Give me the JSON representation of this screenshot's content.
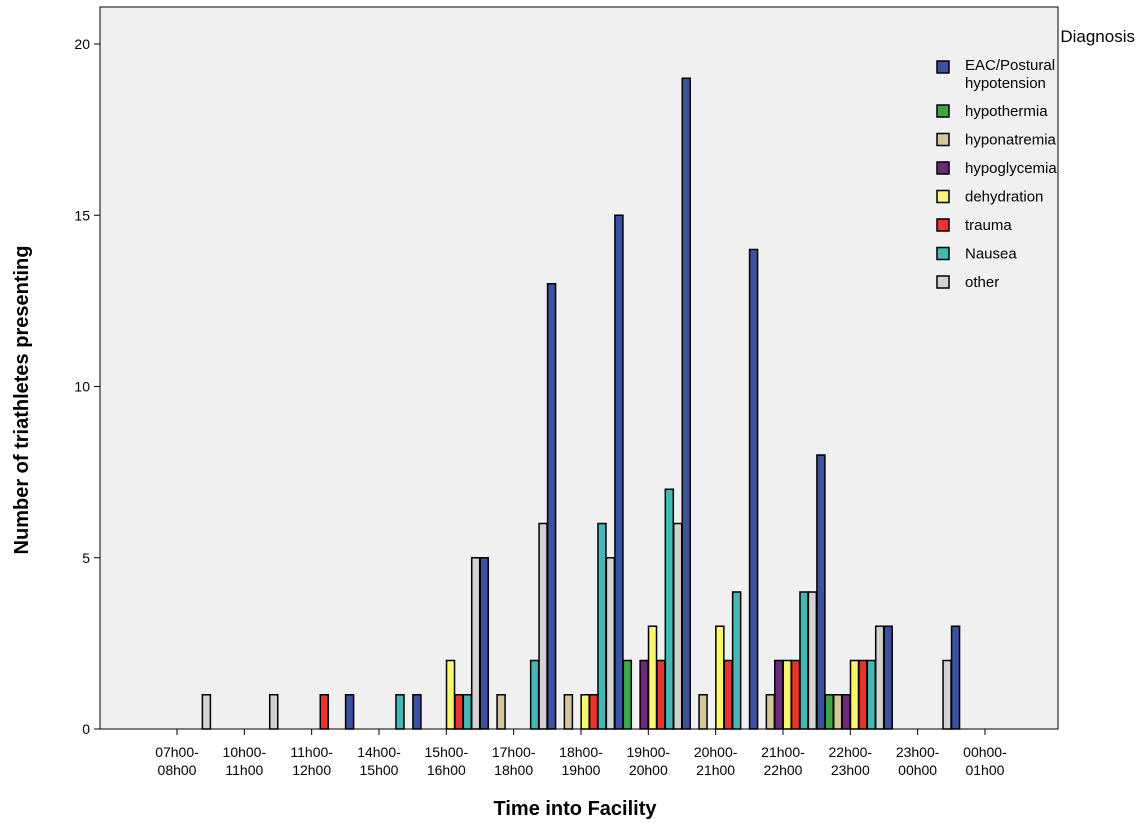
{
  "chart_data": {
    "type": "bar",
    "title": "",
    "xlabel": "Time into Facility",
    "ylabel": "Number of triathletes presenting",
    "ylim": [
      0,
      21
    ],
    "yticks": [
      0,
      5,
      10,
      15,
      20
    ],
    "grid": false,
    "legend_title": "Diagnosis",
    "legend_position": "top-right",
    "categories": [
      [
        "07h00-",
        "08h00"
      ],
      [
        "10h00-",
        "11h00"
      ],
      [
        "11h00-",
        "12h00"
      ],
      [
        "14h00-",
        "15h00"
      ],
      [
        "15h00-",
        "16h00"
      ],
      [
        "17h00-",
        "18h00"
      ],
      [
        "18h00-",
        "19h00"
      ],
      [
        "19h00-",
        "20h00"
      ],
      [
        "20h00-",
        "21h00"
      ],
      [
        "21h00-",
        "22h00"
      ],
      [
        "22h00-",
        "23h00"
      ],
      [
        "23h00-",
        "00h00"
      ],
      [
        "00h00-",
        "01h00"
      ]
    ],
    "series": [
      {
        "name": "EAC/Postural hypotension",
        "legend_lines": [
          "EAC/Postural",
          "hypotension"
        ],
        "color": "#3b52a2",
        "values": [
          0,
          0,
          0,
          1,
          1,
          5,
          13,
          15,
          19,
          14,
          8,
          3,
          3
        ]
      },
      {
        "name": "hypothermia",
        "legend_lines": [
          "hypothermia"
        ],
        "color": "#3aa845",
        "values": [
          0,
          0,
          0,
          0,
          0,
          0,
          0,
          2,
          0,
          0,
          1,
          0,
          0
        ]
      },
      {
        "name": "hyponatremia",
        "legend_lines": [
          "hyponatremia"
        ],
        "color": "#d4c79a",
        "values": [
          0,
          0,
          0,
          0,
          0,
          1,
          1,
          0,
          1,
          1,
          1,
          0,
          0
        ]
      },
      {
        "name": "hypoglycemia",
        "legend_lines": [
          "hypoglycemia"
        ],
        "color": "#6e2a7a",
        "values": [
          0,
          0,
          0,
          0,
          0,
          0,
          0,
          2,
          0,
          2,
          1,
          0,
          0
        ]
      },
      {
        "name": "dehydration",
        "legend_lines": [
          "dehydration"
        ],
        "color": "#fbf570",
        "values": [
          0,
          0,
          0,
          0,
          2,
          0,
          1,
          3,
          3,
          2,
          2,
          0,
          0
        ]
      },
      {
        "name": "trauma",
        "legend_lines": [
          "trauma"
        ],
        "color": "#e8332e",
        "values": [
          0,
          0,
          1,
          0,
          1,
          0,
          1,
          2,
          2,
          2,
          2,
          0,
          0
        ]
      },
      {
        "name": "Nausea",
        "legend_lines": [
          "Nausea"
        ],
        "color": "#43b8b5",
        "values": [
          0,
          0,
          0,
          1,
          1,
          2,
          6,
          7,
          4,
          4,
          2,
          0,
          0
        ]
      },
      {
        "name": "other",
        "legend_lines": [
          "other"
        ],
        "color": "#d2d2d2",
        "values": [
          1,
          1,
          0,
          0,
          5,
          6,
          5,
          6,
          0,
          4,
          3,
          2,
          0
        ]
      }
    ]
  }
}
